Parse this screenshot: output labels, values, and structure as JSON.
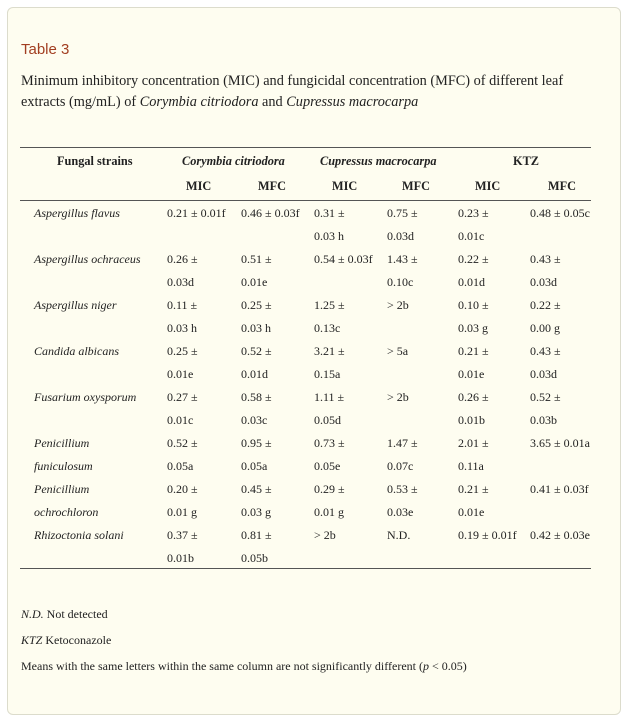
{
  "table": {
    "label": "Table 3",
    "caption_prefix": "Minimum inhibitory concentration (MIC) and fungicidal concentration (MFC) of different leaf extracts (mg/mL) of ",
    "caption_species_1": "Corymbia citriodora",
    "caption_and": " and ",
    "caption_species_2": "Cupressus macrocarpa"
  },
  "headers": {
    "strain_col": "Fungal strains",
    "group_1": "Corymbia citriodora",
    "group_2": "Cupressus macrocarpa",
    "group_3": "KTZ",
    "sub": [
      "MIC",
      "MFC",
      "MIC",
      "MFC",
      "MIC",
      "MFC"
    ]
  },
  "rows": [
    {
      "strain": [
        "Aspergillus flavus"
      ],
      "cells": [
        [
          "0.21 ± 0.01f"
        ],
        [
          "0.46 ± 0.03f"
        ],
        [
          "0.31 ±",
          "0.03 h"
        ],
        [
          "0.75 ±",
          "0.03d"
        ],
        [
          "0.23 ±",
          "0.01c"
        ],
        [
          "0.48 ± 0.05c"
        ]
      ]
    },
    {
      "strain": [
        "Aspergillus ochraceus"
      ],
      "cells": [
        [
          "0.26 ±",
          "0.03d"
        ],
        [
          "0.51 ±",
          "0.01e"
        ],
        [
          "0.54 ± 0.03f"
        ],
        [
          "1.43 ±",
          "0.10c"
        ],
        [
          "0.22 ±",
          "0.01d"
        ],
        [
          "0.43 ±",
          "0.03d"
        ]
      ]
    },
    {
      "strain": [
        "Aspergillus niger"
      ],
      "cells": [
        [
          "0.11 ±",
          "0.03 h"
        ],
        [
          "0.25 ±",
          "0.03 h"
        ],
        [
          "1.25 ±",
          "0.13c"
        ],
        [
          "> 2b"
        ],
        [
          "0.10 ±",
          "0.03 g"
        ],
        [
          "0.22 ±",
          "0.00 g"
        ]
      ]
    },
    {
      "strain": [
        "Candida albicans"
      ],
      "cells": [
        [
          "0.25 ±",
          "0.01e"
        ],
        [
          "0.52 ±",
          "0.01d"
        ],
        [
          "3.21 ±",
          "0.15a"
        ],
        [
          "> 5a"
        ],
        [
          "0.21 ±",
          "0.01e"
        ],
        [
          "0.43 ±",
          "0.03d"
        ]
      ]
    },
    {
      "strain": [
        "Fusarium oxysporum"
      ],
      "cells": [
        [
          "0.27 ±",
          "0.01c"
        ],
        [
          "0.58 ±",
          "0.03c"
        ],
        [
          "1.11 ±",
          "0.05d"
        ],
        [
          "> 2b"
        ],
        [
          "0.26 ±",
          "0.01b"
        ],
        [
          "0.52 ±",
          "0.03b"
        ]
      ]
    },
    {
      "strain": [
        "Penicillium",
        "funiculosum"
      ],
      "cells": [
        [
          "0.52 ±",
          "0.05a"
        ],
        [
          "0.95 ±",
          "0.05a"
        ],
        [
          "0.73 ±",
          "0.05e"
        ],
        [
          "1.47 ±",
          "0.07c"
        ],
        [
          "2.01 ±",
          "0.11a"
        ],
        [
          "3.65 ± 0.01a"
        ]
      ]
    },
    {
      "strain": [
        "Penicillium",
        "ochrochloron"
      ],
      "cells": [
        [
          "0.20 ±",
          "0.01 g"
        ],
        [
          "0.45 ±",
          "0.03 g"
        ],
        [
          "0.29 ±",
          "0.01 g"
        ],
        [
          "0.53 ±",
          "0.03e"
        ],
        [
          "0.21 ±",
          "0.01e"
        ],
        [
          "0.41 ± 0.03f"
        ]
      ]
    },
    {
      "strain": [
        "Rhizoctonia solani"
      ],
      "cells": [
        [
          "0.37 ±",
          "0.01b"
        ],
        [
          "0.81 ±",
          "0.05b"
        ],
        [
          "> 2b"
        ],
        [
          "N.D."
        ],
        [
          "0.19 ± 0.01f"
        ],
        [
          "0.42 ± 0.03e"
        ]
      ]
    }
  ],
  "footnotes": {
    "nd_abbr": "N.D.",
    "nd_text": " Not detected",
    "ktz_abbr": "KTZ",
    "ktz_text": " Ketoconazole",
    "means_prefix": "Means with the same letters within the same column are not significantly different (",
    "means_p": "p",
    "means_suffix": " < 0.05)"
  },
  "colors": {
    "label": "#a23e21",
    "panel_bg": "#fefdf0",
    "text": "#222222",
    "rule": "#555555"
  }
}
